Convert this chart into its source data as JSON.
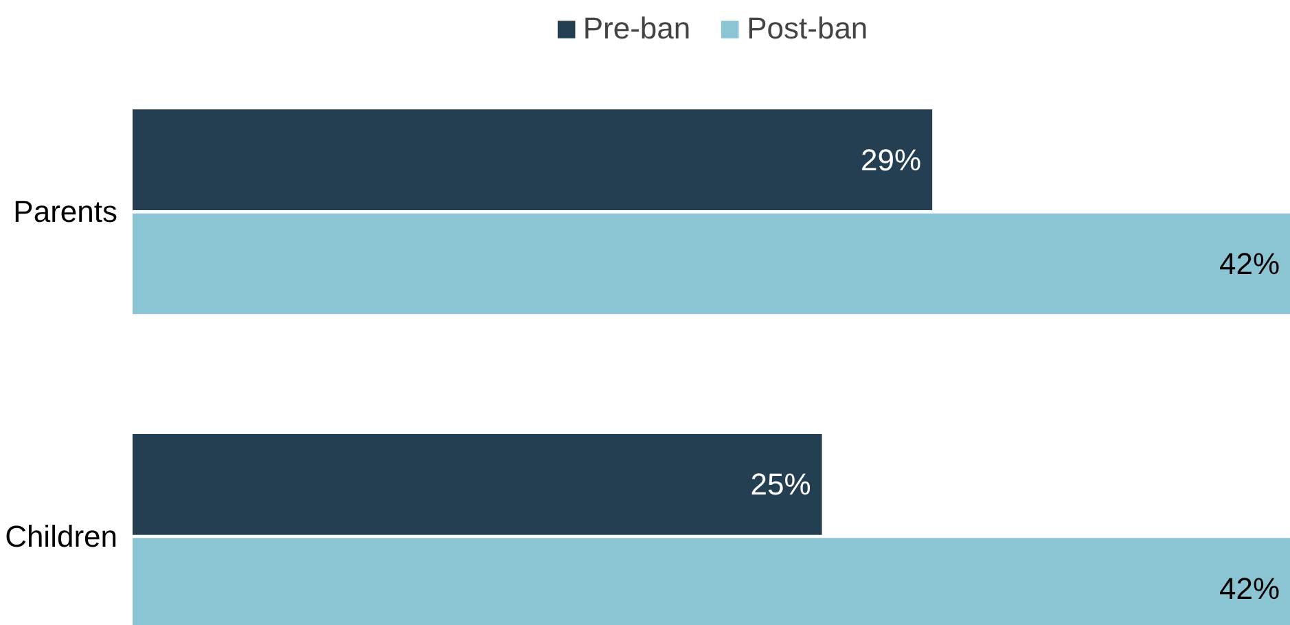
{
  "chart_data": {
    "type": "bar",
    "orientation": "horizontal",
    "categories": [
      "Parents",
      "Children"
    ],
    "series": [
      {
        "name": "Pre-ban",
        "color": "#233f51",
        "values": [
          29,
          25
        ],
        "value_labels": [
          "29%",
          "25%"
        ]
      },
      {
        "name": "Post-ban",
        "color": "#8bc5d3",
        "values": [
          42,
          42
        ],
        "value_labels": [
          "42%",
          "42%"
        ]
      }
    ],
    "legend": "top",
    "grid": false,
    "tick_labels": "y"
  }
}
